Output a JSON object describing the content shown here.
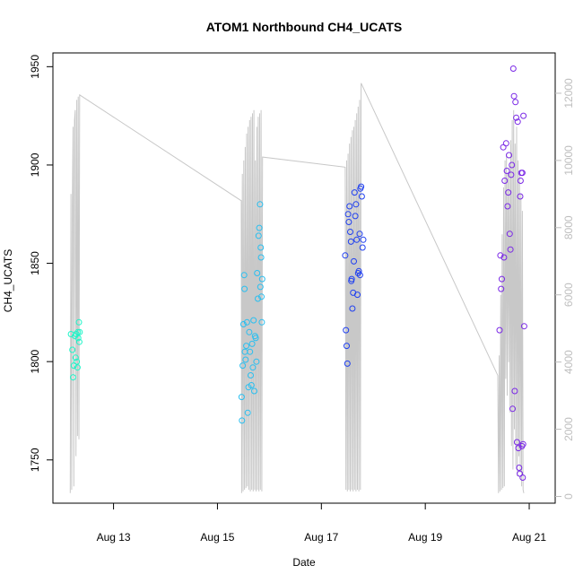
{
  "chart_data": {
    "type": "scatter",
    "title": "ATOM1 Northbound CH4_UCATS",
    "xlabel": "Date",
    "ylabel": "CH4_UCATS",
    "xlim": [
      "2016-08-11 20:00",
      "2016-08-21 12:00"
    ],
    "ylim": [
      1728,
      1957
    ],
    "y2lim": [
      -200,
      13200
    ],
    "x_ticks": [
      {
        "label": "Aug 13",
        "value": "2016-08-13 00:00"
      },
      {
        "label": "Aug 15",
        "value": "2016-08-15 00:00"
      },
      {
        "label": "Aug 17",
        "value": "2016-08-17 00:00"
      },
      {
        "label": "Aug 19",
        "value": "2016-08-19 00:00"
      },
      {
        "label": "Aug 21",
        "value": "2016-08-21 00:00"
      }
    ],
    "y_ticks": [
      "1750",
      "1800",
      "1850",
      "1900",
      "1950"
    ],
    "y2_ticks": [
      "0",
      "2000",
      "4000",
      "6000",
      "8000",
      "10000",
      "12000"
    ],
    "grid": false,
    "legend": "none",
    "colors": {
      "secondary_line": "#c8c8c8",
      "flight1": "#1ff5c8",
      "flight2": "#2abff0",
      "flight3": "#2040f0",
      "flight4": "#7a28e6"
    },
    "series": [
      {
        "values": [
          {
            "x": "2016-08-12 04:20",
            "y": 1814
          },
          {
            "x": "2016-08-12 05:00",
            "y": 1806
          },
          {
            "x": "2016-08-12 05:20",
            "y": 1792
          },
          {
            "x": "2016-08-12 05:40",
            "y": 1798
          },
          {
            "x": "2016-08-12 06:10",
            "y": 1813
          },
          {
            "x": "2016-08-12 06:30",
            "y": 1802
          },
          {
            "x": "2016-08-12 06:50",
            "y": 1814
          },
          {
            "x": "2016-08-12 07:20",
            "y": 1797
          },
          {
            "x": "2016-08-12 07:30",
            "y": 1815
          },
          {
            "x": "2016-08-12 07:40",
            "y": 1812
          },
          {
            "x": "2016-08-12 08:00",
            "y": 1820
          },
          {
            "x": "2016-08-12 08:10",
            "y": 1810
          },
          {
            "x": "2016-08-12 08:20",
            "y": 1815
          },
          {
            "x": "2016-08-12 07:00",
            "y": 1800
          }
        ]
      },
      {
        "values": [
          {
            "x": "2016-08-15 11:10",
            "y": 1782
          },
          {
            "x": "2016-08-15 11:20",
            "y": 1770
          },
          {
            "x": "2016-08-15 11:40",
            "y": 1798
          },
          {
            "x": "2016-08-15 12:00",
            "y": 1819
          },
          {
            "x": "2016-08-15 12:20",
            "y": 1844
          },
          {
            "x": "2016-08-15 12:30",
            "y": 1837
          },
          {
            "x": "2016-08-15 12:40",
            "y": 1805
          },
          {
            "x": "2016-08-15 13:00",
            "y": 1801
          },
          {
            "x": "2016-08-15 13:20",
            "y": 1808
          },
          {
            "x": "2016-08-15 13:40",
            "y": 1820
          },
          {
            "x": "2016-08-15 14:00",
            "y": 1774
          },
          {
            "x": "2016-08-15 14:20",
            "y": 1787
          },
          {
            "x": "2016-08-15 14:40",
            "y": 1815
          },
          {
            "x": "2016-08-15 15:00",
            "y": 1805
          },
          {
            "x": "2016-08-15 15:20",
            "y": 1793
          },
          {
            "x": "2016-08-15 15:40",
            "y": 1788
          },
          {
            "x": "2016-08-15 16:00",
            "y": 1809
          },
          {
            "x": "2016-08-15 16:20",
            "y": 1797
          },
          {
            "x": "2016-08-15 16:40",
            "y": 1821
          },
          {
            "x": "2016-08-15 17:00",
            "y": 1785
          },
          {
            "x": "2016-08-15 17:20",
            "y": 1813
          },
          {
            "x": "2016-08-15 17:40",
            "y": 1812
          },
          {
            "x": "2016-08-15 18:00",
            "y": 1800
          },
          {
            "x": "2016-08-15 18:20",
            "y": 1845
          },
          {
            "x": "2016-08-15 18:40",
            "y": 1832
          },
          {
            "x": "2016-08-15 19:00",
            "y": 1864
          },
          {
            "x": "2016-08-15 19:20",
            "y": 1868
          },
          {
            "x": "2016-08-15 19:40",
            "y": 1880
          },
          {
            "x": "2016-08-15 20:00",
            "y": 1858
          },
          {
            "x": "2016-08-15 20:10",
            "y": 1853
          },
          {
            "x": "2016-08-15 20:20",
            "y": 1833
          },
          {
            "x": "2016-08-15 20:30",
            "y": 1820
          },
          {
            "x": "2016-08-15 19:50",
            "y": 1838
          },
          {
            "x": "2016-08-15 20:40",
            "y": 1842
          }
        ]
      },
      {
        "values": [
          {
            "x": "2016-08-17 11:00",
            "y": 1854
          },
          {
            "x": "2016-08-17 11:20",
            "y": 1816
          },
          {
            "x": "2016-08-17 11:40",
            "y": 1808
          },
          {
            "x": "2016-08-17 12:00",
            "y": 1799
          },
          {
            "x": "2016-08-17 12:20",
            "y": 1875
          },
          {
            "x": "2016-08-17 12:40",
            "y": 1871
          },
          {
            "x": "2016-08-17 13:00",
            "y": 1879
          },
          {
            "x": "2016-08-17 13:20",
            "y": 1866
          },
          {
            "x": "2016-08-17 13:40",
            "y": 1861
          },
          {
            "x": "2016-08-17 14:00",
            "y": 1842
          },
          {
            "x": "2016-08-17 14:20",
            "y": 1827
          },
          {
            "x": "2016-08-17 14:40",
            "y": 1835
          },
          {
            "x": "2016-08-17 15:00",
            "y": 1851
          },
          {
            "x": "2016-08-17 15:20",
            "y": 1886
          },
          {
            "x": "2016-08-17 15:40",
            "y": 1874
          },
          {
            "x": "2016-08-17 16:00",
            "y": 1880
          },
          {
            "x": "2016-08-17 16:20",
            "y": 1862
          },
          {
            "x": "2016-08-17 16:40",
            "y": 1834
          },
          {
            "x": "2016-08-17 17:00",
            "y": 1845
          },
          {
            "x": "2016-08-17 17:20",
            "y": 1846
          },
          {
            "x": "2016-08-17 17:40",
            "y": 1865
          },
          {
            "x": "2016-08-17 18:00",
            "y": 1888
          },
          {
            "x": "2016-08-17 18:20",
            "y": 1889
          },
          {
            "x": "2016-08-17 18:40",
            "y": 1884
          },
          {
            "x": "2016-08-17 19:00",
            "y": 1858
          },
          {
            "x": "2016-08-17 19:20",
            "y": 1862
          },
          {
            "x": "2016-08-17 13:50",
            "y": 1841
          },
          {
            "x": "2016-08-17 17:50",
            "y": 1844
          }
        ]
      },
      {
        "values": [
          {
            "x": "2016-08-20 10:20",
            "y": 1816
          },
          {
            "x": "2016-08-20 10:40",
            "y": 1854
          },
          {
            "x": "2016-08-20 11:00",
            "y": 1837
          },
          {
            "x": "2016-08-20 11:20",
            "y": 1842
          },
          {
            "x": "2016-08-20 12:00",
            "y": 1909
          },
          {
            "x": "2016-08-20 12:20",
            "y": 1853
          },
          {
            "x": "2016-08-20 12:40",
            "y": 1892
          },
          {
            "x": "2016-08-20 13:20",
            "y": 1911
          },
          {
            "x": "2016-08-20 13:40",
            "y": 1897
          },
          {
            "x": "2016-08-20 14:00",
            "y": 1879
          },
          {
            "x": "2016-08-20 14:20",
            "y": 1886
          },
          {
            "x": "2016-08-20 14:40",
            "y": 1905
          },
          {
            "x": "2016-08-20 15:00",
            "y": 1865
          },
          {
            "x": "2016-08-20 15:20",
            "y": 1857
          },
          {
            "x": "2016-08-20 15:40",
            "y": 1895
          },
          {
            "x": "2016-08-20 16:00",
            "y": 1900
          },
          {
            "x": "2016-08-20 16:20",
            "y": 1776
          },
          {
            "x": "2016-08-20 16:40",
            "y": 1949
          },
          {
            "x": "2016-08-20 17:00",
            "y": 1935
          },
          {
            "x": "2016-08-20 17:20",
            "y": 1785
          },
          {
            "x": "2016-08-20 17:40",
            "y": 1932
          },
          {
            "x": "2016-08-20 18:00",
            "y": 1924
          },
          {
            "x": "2016-08-20 18:20",
            "y": 1759
          },
          {
            "x": "2016-08-20 18:40",
            "y": 1922
          },
          {
            "x": "2016-08-20 19:00",
            "y": 1756
          },
          {
            "x": "2016-08-20 19:20",
            "y": 1746
          },
          {
            "x": "2016-08-20 19:40",
            "y": 1743
          },
          {
            "x": "2016-08-20 20:00",
            "y": 1892
          },
          {
            "x": "2016-08-20 20:20",
            "y": 1896
          },
          {
            "x": "2016-08-20 20:40",
            "y": 1757
          },
          {
            "x": "2016-08-20 21:00",
            "y": 1741
          },
          {
            "x": "2016-08-20 21:20",
            "y": 1925
          },
          {
            "x": "2016-08-20 21:40",
            "y": 1818
          },
          {
            "x": "2016-08-20 20:50",
            "y": 1896
          },
          {
            "x": "2016-08-20 19:50",
            "y": 1884
          },
          {
            "x": "2016-08-20 21:10",
            "y": 1758
          }
        ]
      }
    ],
    "secondary_series": {
      "type": "line",
      "axis": "right",
      "values": [
        {
          "x": "2016-08-12 04:00",
          "y": 100
        },
        {
          "x": "2016-08-12 04:20",
          "y": 9000
        },
        {
          "x": "2016-08-12 04:40",
          "y": 200
        },
        {
          "x": "2016-08-12 05:00",
          "y": 8700
        },
        {
          "x": "2016-08-12 05:20",
          "y": 11000
        },
        {
          "x": "2016-08-12 05:40",
          "y": 300
        },
        {
          "x": "2016-08-12 06:00",
          "y": 11200
        },
        {
          "x": "2016-08-12 06:20",
          "y": 11500
        },
        {
          "x": "2016-08-12 06:40",
          "y": 1200
        },
        {
          "x": "2016-08-12 07:00",
          "y": 11800
        },
        {
          "x": "2016-08-12 07:20",
          "y": 1800
        },
        {
          "x": "2016-08-12 07:40",
          "y": 11900
        },
        {
          "x": "2016-08-12 08:00",
          "y": 1700
        },
        {
          "x": "2016-08-12 08:20",
          "y": 11950
        },
        {
          "x": "2016-08-15 11:00",
          "y": 8800
        },
        {
          "x": "2016-08-15 11:10",
          "y": 100
        },
        {
          "x": "2016-08-15 11:30",
          "y": 9600
        },
        {
          "x": "2016-08-15 11:50",
          "y": 150
        },
        {
          "x": "2016-08-15 12:10",
          "y": 10000
        },
        {
          "x": "2016-08-15 12:30",
          "y": 200
        },
        {
          "x": "2016-08-15 12:50",
          "y": 10400
        },
        {
          "x": "2016-08-15 13:10",
          "y": 250
        },
        {
          "x": "2016-08-15 13:30",
          "y": 10800
        },
        {
          "x": "2016-08-15 13:50",
          "y": 300
        },
        {
          "x": "2016-08-15 14:10",
          "y": 11000
        },
        {
          "x": "2016-08-15 14:30",
          "y": 200
        },
        {
          "x": "2016-08-15 14:50",
          "y": 11200
        },
        {
          "x": "2016-08-15 15:10",
          "y": 150
        },
        {
          "x": "2016-08-15 15:30",
          "y": 11300
        },
        {
          "x": "2016-08-15 15:50",
          "y": 200
        },
        {
          "x": "2016-08-15 16:10",
          "y": 11400
        },
        {
          "x": "2016-08-15 16:30",
          "y": 150
        },
        {
          "x": "2016-08-15 16:50",
          "y": 11500
        },
        {
          "x": "2016-08-15 17:10",
          "y": 200
        },
        {
          "x": "2016-08-15 17:30",
          "y": 10000
        },
        {
          "x": "2016-08-15 17:50",
          "y": 150
        },
        {
          "x": "2016-08-15 18:10",
          "y": 11000
        },
        {
          "x": "2016-08-15 18:30",
          "y": 200
        },
        {
          "x": "2016-08-15 18:50",
          "y": 11300
        },
        {
          "x": "2016-08-15 19:10",
          "y": 150
        },
        {
          "x": "2016-08-15 19:30",
          "y": 11400
        },
        {
          "x": "2016-08-15 19:50",
          "y": 200
        },
        {
          "x": "2016-08-15 20:10",
          "y": 11500
        },
        {
          "x": "2016-08-15 20:30",
          "y": 150
        },
        {
          "x": "2016-08-15 20:50",
          "y": 10100
        },
        {
          "x": "2016-08-17 11:00",
          "y": 9800
        },
        {
          "x": "2016-08-17 11:20",
          "y": 200
        },
        {
          "x": "2016-08-17 11:40",
          "y": 10000
        },
        {
          "x": "2016-08-17 12:00",
          "y": 150
        },
        {
          "x": "2016-08-17 12:20",
          "y": 10200
        },
        {
          "x": "2016-08-17 12:40",
          "y": 200
        },
        {
          "x": "2016-08-17 13:00",
          "y": 10500
        },
        {
          "x": "2016-08-17 13:20",
          "y": 150
        },
        {
          "x": "2016-08-17 13:40",
          "y": 10700
        },
        {
          "x": "2016-08-17 14:00",
          "y": 200
        },
        {
          "x": "2016-08-17 14:20",
          "y": 10900
        },
        {
          "x": "2016-08-17 14:40",
          "y": 150
        },
        {
          "x": "2016-08-17 15:00",
          "y": 11000
        },
        {
          "x": "2016-08-17 15:20",
          "y": 200
        },
        {
          "x": "2016-08-17 15:40",
          "y": 11200
        },
        {
          "x": "2016-08-17 16:00",
          "y": 150
        },
        {
          "x": "2016-08-17 16:20",
          "y": 11400
        },
        {
          "x": "2016-08-17 16:40",
          "y": 200
        },
        {
          "x": "2016-08-17 17:00",
          "y": 11600
        },
        {
          "x": "2016-08-17 17:20",
          "y": 150
        },
        {
          "x": "2016-08-17 17:40",
          "y": 11800
        },
        {
          "x": "2016-08-17 18:00",
          "y": 200
        },
        {
          "x": "2016-08-17 18:20",
          "y": 12300
        },
        {
          "x": "2016-08-20 09:30",
          "y": 3600
        },
        {
          "x": "2016-08-20 09:50",
          "y": 100
        },
        {
          "x": "2016-08-20 10:10",
          "y": 4200
        },
        {
          "x": "2016-08-20 10:30",
          "y": 150
        },
        {
          "x": "2016-08-20 10:50",
          "y": 6000
        },
        {
          "x": "2016-08-20 11:10",
          "y": 200
        },
        {
          "x": "2016-08-20 11:30",
          "y": 7800
        },
        {
          "x": "2016-08-20 11:50",
          "y": 250
        },
        {
          "x": "2016-08-20 12:10",
          "y": 9200
        },
        {
          "x": "2016-08-20 12:30",
          "y": 300
        },
        {
          "x": "2016-08-20 12:50",
          "y": 10000
        },
        {
          "x": "2016-08-20 13:10",
          "y": 3500
        },
        {
          "x": "2016-08-20 13:30",
          "y": 10200
        },
        {
          "x": "2016-08-20 13:50",
          "y": 3000
        },
        {
          "x": "2016-08-20 14:10",
          "y": 9600
        },
        {
          "x": "2016-08-20 14:30",
          "y": 4000
        },
        {
          "x": "2016-08-20 14:50",
          "y": 9800
        },
        {
          "x": "2016-08-20 15:10",
          "y": 2500
        },
        {
          "x": "2016-08-20 15:30",
          "y": 10600
        },
        {
          "x": "2016-08-20 15:50",
          "y": 1500
        },
        {
          "x": "2016-08-20 16:10",
          "y": 11200
        },
        {
          "x": "2016-08-20 16:30",
          "y": 800
        },
        {
          "x": "2016-08-20 16:50",
          "y": 11500
        },
        {
          "x": "2016-08-20 17:10",
          "y": 2000
        },
        {
          "x": "2016-08-20 17:30",
          "y": 10500
        },
        {
          "x": "2016-08-20 17:50",
          "y": 900
        },
        {
          "x": "2016-08-20 18:10",
          "y": 11000
        },
        {
          "x": "2016-08-20 18:30",
          "y": 600
        },
        {
          "x": "2016-08-20 18:50",
          "y": 10000
        },
        {
          "x": "2016-08-20 19:10",
          "y": 1200
        },
        {
          "x": "2016-08-20 19:30",
          "y": 9600
        },
        {
          "x": "2016-08-20 19:50",
          "y": 700
        },
        {
          "x": "2016-08-20 20:10",
          "y": 9000
        },
        {
          "x": "2016-08-20 20:30",
          "y": 300
        },
        {
          "x": "2016-08-20 20:50",
          "y": 8500
        },
        {
          "x": "2016-08-20 21:10",
          "y": 200
        },
        {
          "x": "2016-08-20 21:30",
          "y": 100
        }
      ]
    }
  }
}
